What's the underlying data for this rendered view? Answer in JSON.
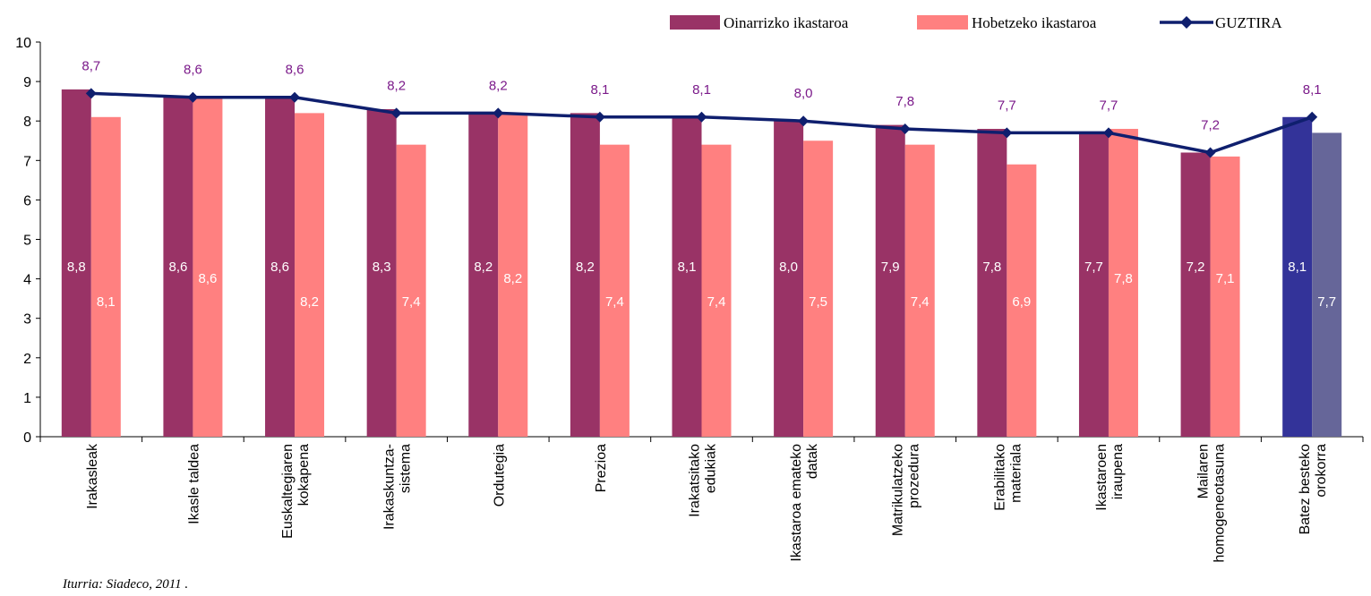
{
  "chart_data": {
    "type": "bar",
    "categories": [
      [
        "Irakasleak"
      ],
      [
        "Ikasle taldea"
      ],
      [
        "Euskaltegiaren",
        "kokapena"
      ],
      [
        "Irakaskuntza-",
        "sistema"
      ],
      [
        "Ordutegia"
      ],
      [
        "Prezioa"
      ],
      [
        "Irakatsitako",
        "edukiak"
      ],
      [
        "Ikastaroa emateko",
        "datak"
      ],
      [
        "Matrikulatzeko",
        "prozedura"
      ],
      [
        "Erabilitako",
        "materiala"
      ],
      [
        "Ikastaroen",
        "iraupena"
      ],
      [
        "Mailaren",
        "homogeneotasuna"
      ],
      [
        "Batez besteko",
        "orokorra"
      ]
    ],
    "series": [
      {
        "name": "Oinarrizko ikastaroa",
        "kind": "bar",
        "color": "#993366",
        "values": [
          8.8,
          8.6,
          8.6,
          8.3,
          8.2,
          8.2,
          8.1,
          8.0,
          7.9,
          7.8,
          7.7,
          7.2,
          8.1
        ],
        "labels": [
          "8,8",
          "8,6",
          "8,6",
          "8,3",
          "8,2",
          "8,2",
          "8,1",
          "8,0",
          "7,9",
          "7,8",
          "7,7",
          "7,2",
          "8,1"
        ]
      },
      {
        "name": "Hobetzeko ikastaroa",
        "kind": "bar",
        "color": "#ff8080",
        "values": [
          8.1,
          8.6,
          8.2,
          7.4,
          8.2,
          7.4,
          7.4,
          7.5,
          7.4,
          6.9,
          7.8,
          7.1,
          7.7
        ],
        "labels": [
          "8,1",
          "8,6",
          "8,2",
          "7,4",
          "8,2",
          "7,4",
          "7,4",
          "7,5",
          "7,4",
          "6,9",
          "7,8",
          "7,1",
          "7,7"
        ]
      },
      {
        "name": "GUZTIRA",
        "kind": "line",
        "color": "#0f1f6e",
        "values": [
          8.7,
          8.6,
          8.6,
          8.2,
          8.2,
          8.1,
          8.1,
          8.0,
          7.8,
          7.7,
          7.7,
          7.2,
          8.1
        ],
        "labels": [
          "8,7",
          "8,6",
          "8,6",
          "8,2",
          "8,2",
          "8,1",
          "8,1",
          "8,0",
          "7,8",
          "7,7",
          "7,7",
          "7,2",
          "8,1"
        ]
      }
    ],
    "highlight": {
      "category_index": 12,
      "colors": [
        "#333399",
        "#666699"
      ]
    },
    "y_ticks": [
      "0",
      "1",
      "2",
      "3",
      "4",
      "5",
      "6",
      "7",
      "8",
      "9",
      "10"
    ],
    "ylim": [
      0,
      10
    ],
    "grid": false,
    "legend_position": "top-right",
    "total_label_color": "#7b1a8a",
    "source": "Iturria: Siadeco, 2011 ."
  }
}
